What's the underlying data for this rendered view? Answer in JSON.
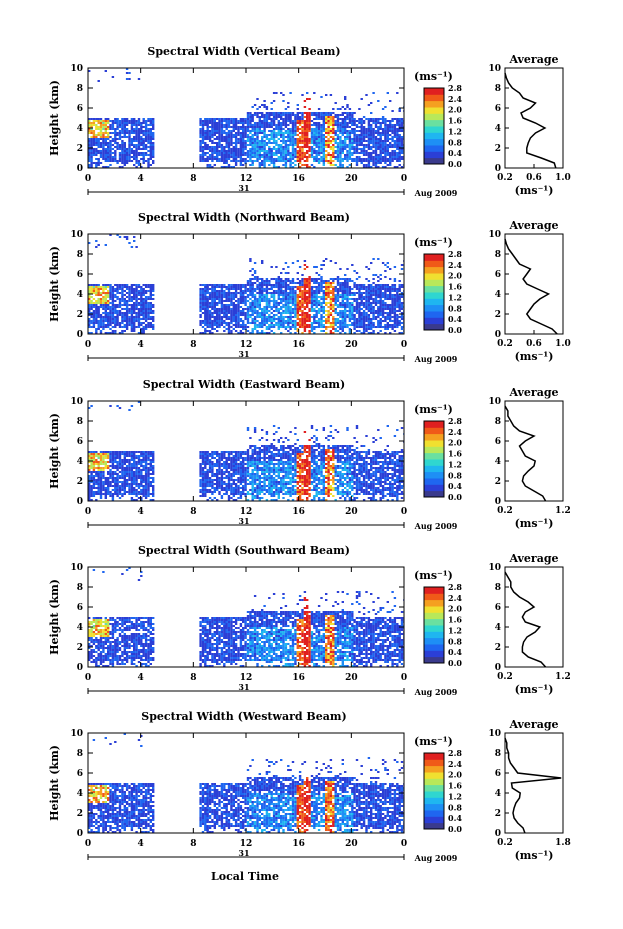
{
  "figure": {
    "xlabel": "Local Time",
    "date_label": "Aug 2009",
    "day_label": "31",
    "colorbar_unit": "(ms⁻¹)",
    "average_title": "Average",
    "average_xlabel": "(ms⁻¹)"
  },
  "colors": {
    "colormap": [
      "#3a3a8c",
      "#2b3fd6",
      "#1f66f0",
      "#1e8ff5",
      "#1fb6f0",
      "#2fd6d0",
      "#6ae0a0",
      "#b8e85a",
      "#f0e030",
      "#f5a020",
      "#f05a18",
      "#e02020"
    ]
  },
  "chart_data": [
    {
      "type": "heatmap",
      "title": "Spectral Width (Vertical Beam)",
      "ylabel": "Height (km)",
      "x_ticks": [
        "0",
        "4",
        "8",
        "12",
        "16",
        "20",
        "0"
      ],
      "y_ticks": [
        "0",
        "2",
        "4",
        "6",
        "8",
        "10"
      ],
      "xlim": [
        0,
        24
      ],
      "ylim": [
        0,
        10
      ],
      "colorbar_ticks": [
        "0.0",
        "0.4",
        "0.8",
        "1.2",
        "1.6",
        "2.0",
        "2.4",
        "2.8"
      ],
      "colorbar_range": [
        0,
        2.8
      ],
      "data_gap_hours": [
        5,
        8.3
      ],
      "avg_profile": {
        "xticks": [
          "0.2",
          "0.6",
          "1.0"
        ],
        "xlim": [
          0.2,
          1.0
        ],
        "height": [
          0,
          0.5,
          1,
          1.5,
          2,
          2.5,
          3,
          3.5,
          4,
          4.5,
          5,
          5.5,
          6,
          6.5,
          7,
          7.5,
          8,
          8.5,
          9,
          9.5
        ],
        "value": [
          0.9,
          0.88,
          0.7,
          0.5,
          0.5,
          0.52,
          0.55,
          0.62,
          0.75,
          0.62,
          0.45,
          0.42,
          0.55,
          0.62,
          0.45,
          0.4,
          0.3,
          0.25,
          0.22,
          0.2
        ]
      }
    },
    {
      "type": "heatmap",
      "title": "Spectral Width (Northward Beam)",
      "ylabel": "Height (km)",
      "x_ticks": [
        "0",
        "4",
        "8",
        "12",
        "16",
        "20",
        "0"
      ],
      "y_ticks": [
        "0",
        "2",
        "4",
        "6",
        "8",
        "10"
      ],
      "xlim": [
        0,
        24
      ],
      "ylim": [
        0,
        10
      ],
      "colorbar_ticks": [
        "0.0",
        "0.4",
        "0.8",
        "1.2",
        "1.6",
        "2.0",
        "2.4",
        "2.8"
      ],
      "colorbar_range": [
        0,
        2.8
      ],
      "data_gap_hours": [
        5,
        8.3
      ],
      "avg_profile": {
        "xticks": [
          "0.2",
          "0.6",
          "1.0"
        ],
        "xlim": [
          0.2,
          1.0
        ],
        "height": [
          0,
          0.5,
          1,
          1.5,
          2,
          2.5,
          3,
          3.5,
          4,
          4.5,
          5,
          5.5,
          6,
          6.5,
          7,
          7.5,
          8,
          8.5,
          9,
          9.5
        ],
        "value": [
          0.92,
          0.85,
          0.7,
          0.55,
          0.5,
          0.55,
          0.6,
          0.68,
          0.8,
          0.65,
          0.5,
          0.45,
          0.5,
          0.55,
          0.4,
          0.35,
          0.3,
          0.25,
          0.22,
          0.2
        ]
      }
    },
    {
      "type": "heatmap",
      "title": "Spectral Width (Eastward Beam)",
      "ylabel": "Height (km)",
      "x_ticks": [
        "0",
        "4",
        "8",
        "12",
        "16",
        "20",
        "0"
      ],
      "y_ticks": [
        "0",
        "2",
        "4",
        "6",
        "8",
        "10"
      ],
      "xlim": [
        0,
        24
      ],
      "ylim": [
        0,
        10
      ],
      "colorbar_ticks": [
        "0.0",
        "0.4",
        "0.8",
        "1.2",
        "1.6",
        "2.0",
        "2.4",
        "2.8"
      ],
      "colorbar_range": [
        0,
        2.8
      ],
      "data_gap_hours": [
        5,
        8.3
      ],
      "avg_profile": {
        "xticks": [
          "0.2",
          "1.2"
        ],
        "xlim": [
          0.2,
          1.2
        ],
        "height": [
          0,
          0.5,
          1,
          1.5,
          2,
          2.5,
          3,
          3.5,
          4,
          4.5,
          5,
          5.5,
          6,
          6.5,
          7,
          7.5,
          8,
          8.5,
          9,
          9.5
        ],
        "value": [
          0.9,
          0.85,
          0.7,
          0.55,
          0.5,
          0.52,
          0.6,
          0.7,
          0.72,
          0.55,
          0.5,
          0.45,
          0.55,
          0.7,
          0.45,
          0.35,
          0.3,
          0.25,
          0.25,
          0.2
        ]
      }
    },
    {
      "type": "heatmap",
      "title": "Spectral Width (Southward Beam)",
      "ylabel": "Height (km)",
      "x_ticks": [
        "0",
        "4",
        "8",
        "12",
        "16",
        "20",
        "0"
      ],
      "y_ticks": [
        "0",
        "2",
        "4",
        "6",
        "8",
        "10"
      ],
      "xlim": [
        0,
        24
      ],
      "ylim": [
        0,
        10
      ],
      "colorbar_ticks": [
        "0.0",
        "0.4",
        "0.8",
        "1.2",
        "1.6",
        "2.0",
        "2.4",
        "2.8"
      ],
      "colorbar_range": [
        0,
        2.8
      ],
      "data_gap_hours": [
        5,
        8.3
      ],
      "avg_profile": {
        "xticks": [
          "0.2",
          "1.2"
        ],
        "xlim": [
          0.2,
          1.2
        ],
        "height": [
          0,
          0.5,
          1,
          1.5,
          2,
          2.5,
          3,
          3.5,
          4,
          4.5,
          5,
          5.5,
          6,
          6.5,
          7,
          7.5,
          8,
          8.5,
          9,
          9.5
        ],
        "value": [
          0.9,
          0.82,
          0.6,
          0.5,
          0.5,
          0.52,
          0.58,
          0.72,
          0.8,
          0.55,
          0.5,
          0.55,
          0.7,
          0.6,
          0.45,
          0.35,
          0.3,
          0.3,
          0.25,
          0.2
        ]
      }
    },
    {
      "type": "heatmap",
      "title": "Spectral Width (Westward Beam)",
      "ylabel": "Height (km)",
      "x_ticks": [
        "0",
        "4",
        "8",
        "12",
        "16",
        "20",
        "0"
      ],
      "y_ticks": [
        "0",
        "2",
        "4",
        "6",
        "8",
        "10"
      ],
      "xlim": [
        0,
        24
      ],
      "ylim": [
        0,
        10
      ],
      "colorbar_ticks": [
        "0.0",
        "0.4",
        "0.8",
        "1.2",
        "1.6",
        "2.0",
        "2.4",
        "2.8"
      ],
      "colorbar_range": [
        0,
        2.8
      ],
      "data_gap_hours": [
        5,
        8.3
      ],
      "avg_profile": {
        "xticks": [
          "0.2",
          "1.8"
        ],
        "xlim": [
          0.2,
          1.8
        ],
        "height": [
          0,
          0.5,
          1,
          1.5,
          2,
          2.5,
          3,
          3.5,
          4,
          4.5,
          5,
          5.5,
          6,
          6.5,
          7,
          7.5,
          8,
          8.5,
          9,
          9.5
        ],
        "value": [
          0.75,
          0.7,
          0.55,
          0.45,
          0.42,
          0.45,
          0.5,
          0.6,
          0.62,
          0.4,
          0.38,
          1.75,
          0.55,
          0.45,
          0.35,
          0.3,
          0.3,
          0.25,
          0.25,
          0.2
        ]
      }
    }
  ]
}
